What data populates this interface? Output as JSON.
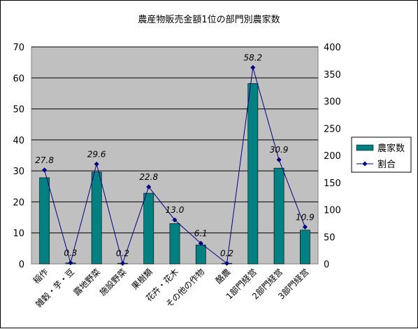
{
  "chart_data": {
    "type": "bar+line",
    "title": "農産物販売金額1位の部門別農家数",
    "categories": [
      "稲作",
      "雑穀・芋・豆",
      "露地野菜",
      "施設野菜",
      "果樹類",
      "花卉・花木",
      "その他の作物",
      "酪農",
      "1部門経営",
      "2部門経営",
      "3部門経営"
    ],
    "series": [
      {
        "name": "農家数",
        "axis": "left",
        "kind": "bar",
        "color": "#008080",
        "values": [
          27.8,
          0.3,
          29.6,
          0.2,
          22.8,
          13.0,
          6.1,
          0.2,
          58.2,
          30.9,
          10.9
        ]
      },
      {
        "name": "割合",
        "axis": "right",
        "kind": "line",
        "color": "#000080",
        "values": [
          173,
          2,
          184,
          1,
          142,
          81,
          38,
          1,
          362,
          192,
          68
        ]
      }
    ],
    "data_labels": [
      "27.8",
      "0.3",
      "29.6",
      "0.2",
      "22.8",
      "13.0",
      "6.1",
      "0.2",
      "58.2",
      "30.9",
      "10.9"
    ],
    "ylim_left": [
      0,
      70
    ],
    "yticks_left": [
      "0",
      "10",
      "20",
      "30",
      "40",
      "50",
      "60",
      "70"
    ],
    "ylim_right": [
      0,
      400
    ],
    "yticks_right": [
      "0",
      "50",
      "100",
      "150",
      "200",
      "250",
      "300",
      "350",
      "400"
    ],
    "grid": true,
    "plot_background": "#c0c0c0",
    "legend_position": "right"
  }
}
